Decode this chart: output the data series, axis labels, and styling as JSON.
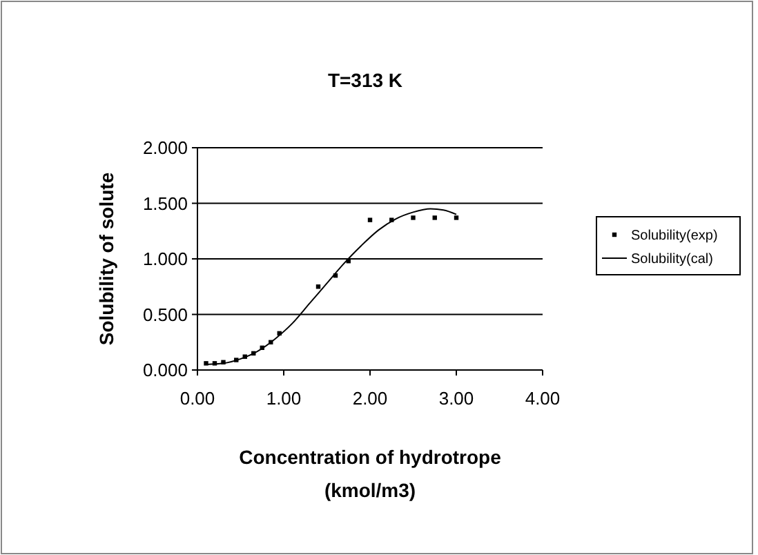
{
  "chart_data": {
    "type": "scatter",
    "title": "T=313 K",
    "xlabel": "Concentration of hydrotrope\n(kmol/m3)",
    "ylabel": "Solubility of solute",
    "xlim": [
      0,
      4
    ],
    "xticks": [
      {
        "value": 0,
        "label": "0.00"
      },
      {
        "value": 1,
        "label": "1.00"
      },
      {
        "value": 2,
        "label": "2.00"
      },
      {
        "value": 3,
        "label": "3.00"
      },
      {
        "value": 4,
        "label": "4.00"
      }
    ],
    "ylim": [
      0,
      2
    ],
    "yticks": [
      {
        "value": 0,
        "label": "0.000"
      },
      {
        "value": 0.5,
        "label": "0.500"
      },
      {
        "value": 1,
        "label": "1.000"
      },
      {
        "value": 1.5,
        "label": "1.500"
      },
      {
        "value": 2,
        "label": "2.000"
      }
    ],
    "grid": "y",
    "legend": "right",
    "series": [
      {
        "name": "Solubility(exp)",
        "marker": "square",
        "color": "#000000",
        "x": [
          0.1,
          0.2,
          0.3,
          0.45,
          0.55,
          0.65,
          0.75,
          0.85,
          0.95,
          1.4,
          1.6,
          1.75,
          2.0,
          2.25,
          2.5,
          2.75,
          3.0
        ],
        "values": [
          0.06,
          0.06,
          0.07,
          0.09,
          0.12,
          0.15,
          0.2,
          0.25,
          0.33,
          0.75,
          0.85,
          0.98,
          1.35,
          1.35,
          1.37,
          1.37,
          1.37
        ]
      },
      {
        "name": "Solubility(cal)",
        "type": "line",
        "color": "#000000",
        "line_style": "solid",
        "x": [
          0.1,
          0.3,
          0.5,
          0.7,
          0.9,
          1.1,
          1.3,
          1.5,
          1.7,
          1.9,
          2.1,
          2.3,
          2.5,
          2.7,
          2.85,
          3.0
        ],
        "values": [
          0.05,
          0.06,
          0.1,
          0.17,
          0.28,
          0.42,
          0.6,
          0.78,
          0.96,
          1.12,
          1.26,
          1.36,
          1.42,
          1.45,
          1.44,
          1.4
        ]
      }
    ]
  }
}
